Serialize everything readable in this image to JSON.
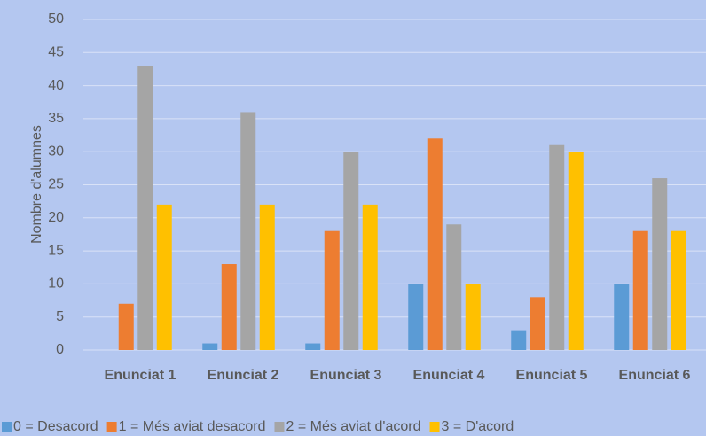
{
  "chart_data": {
    "type": "bar",
    "y_label": "Nombre d'alumnes",
    "categories": [
      "Enunciat 1",
      "Enunciat 2",
      "Enunciat 3",
      "Enunciat 4",
      "Enunciat 5",
      "Enunciat 6"
    ],
    "series": [
      {
        "name": "0 = Desacord",
        "color": "#5b9bd5",
        "values": [
          0,
          1,
          1,
          10,
          3,
          10
        ]
      },
      {
        "name": "1 = Més aviat desacord",
        "color": "#ed7d31",
        "values": [
          7,
          13,
          18,
          32,
          8,
          18
        ]
      },
      {
        "name": "2 = Més aviat d'acord",
        "color": "#a5a5a5",
        "values": [
          43,
          36,
          30,
          19,
          31,
          26
        ]
      },
      {
        "name": "3 = D'acord",
        "color": "#ffc000",
        "values": [
          22,
          22,
          22,
          10,
          30,
          18
        ]
      }
    ],
    "ylim": [
      0,
      50
    ],
    "yticks": [
      0,
      5,
      10,
      15,
      20,
      25,
      30,
      35,
      40,
      45,
      50
    ],
    "grid": true,
    "legend": "bottom"
  }
}
